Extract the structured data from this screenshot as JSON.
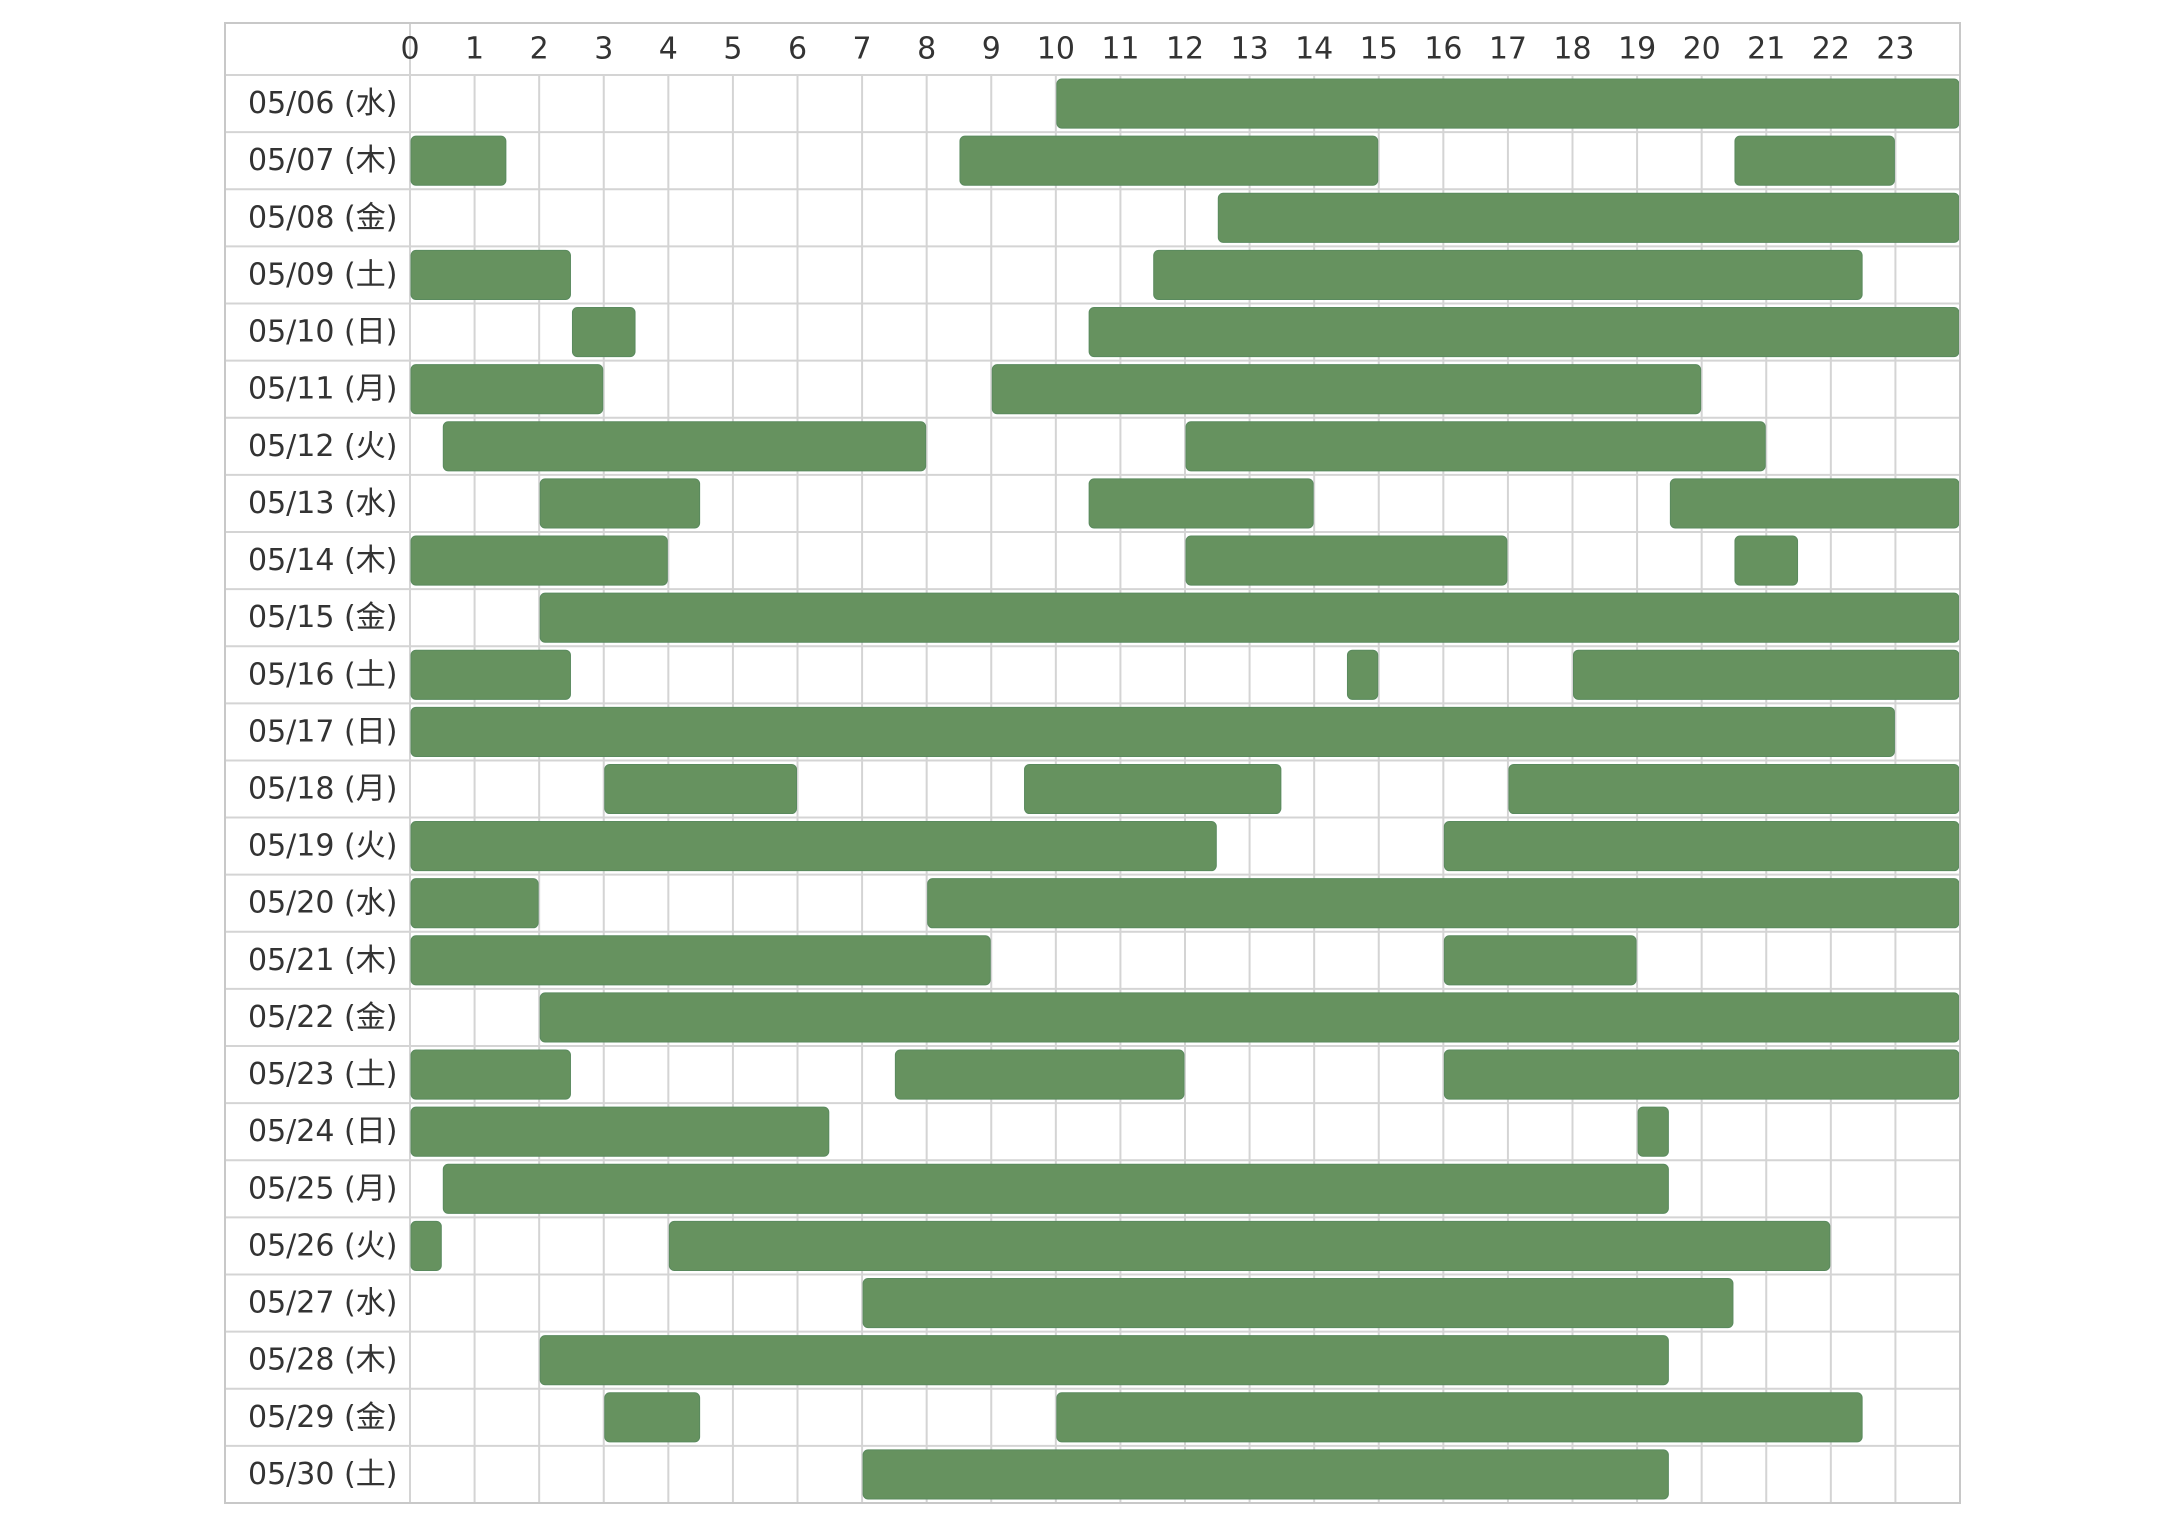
{
  "chart_data": {
    "type": "timeline",
    "title": "",
    "xlabel": "",
    "ylabel": "",
    "hours": [
      "0",
      "1",
      "2",
      "3",
      "4",
      "5",
      "6",
      "7",
      "8",
      "9",
      "10",
      "11",
      "12",
      "13",
      "14",
      "15",
      "16",
      "17",
      "18",
      "19",
      "20",
      "21",
      "22",
      "23"
    ],
    "x_range": [
      0,
      24
    ],
    "grid": true,
    "bar_color": "#66925f",
    "days": [
      {
        "label": "05/06 (水)",
        "spans": [
          [
            10.0,
            24.0
          ]
        ]
      },
      {
        "label": "05/07 (木)",
        "spans": [
          [
            0.0,
            1.5
          ],
          [
            8.5,
            15.0
          ],
          [
            20.5,
            23.0
          ]
        ]
      },
      {
        "label": "05/08 (金)",
        "spans": [
          [
            12.5,
            24.0
          ]
        ]
      },
      {
        "label": "05/09 (土)",
        "spans": [
          [
            0.0,
            2.5
          ],
          [
            11.5,
            22.5
          ]
        ]
      },
      {
        "label": "05/10 (日)",
        "spans": [
          [
            2.5,
            3.5
          ],
          [
            10.5,
            24.0
          ]
        ]
      },
      {
        "label": "05/11 (月)",
        "spans": [
          [
            0.0,
            3.0
          ],
          [
            9.0,
            20.0
          ]
        ]
      },
      {
        "label": "05/12 (火)",
        "spans": [
          [
            0.5,
            8.0
          ],
          [
            12.0,
            21.0
          ]
        ]
      },
      {
        "label": "05/13 (水)",
        "spans": [
          [
            2.0,
            4.5
          ],
          [
            10.5,
            14.0
          ],
          [
            19.5,
            24.0
          ]
        ]
      },
      {
        "label": "05/14 (木)",
        "spans": [
          [
            0.0,
            4.0
          ],
          [
            12.0,
            17.0
          ],
          [
            20.5,
            21.5
          ]
        ]
      },
      {
        "label": "05/15 (金)",
        "spans": [
          [
            2.0,
            24.0
          ]
        ]
      },
      {
        "label": "05/16 (土)",
        "spans": [
          [
            0.0,
            2.5
          ],
          [
            14.5,
            15.0
          ],
          [
            18.0,
            24.0
          ]
        ]
      },
      {
        "label": "05/17 (日)",
        "spans": [
          [
            0.0,
            23.0
          ]
        ]
      },
      {
        "label": "05/18 (月)",
        "spans": [
          [
            3.0,
            6.0
          ],
          [
            9.5,
            13.5
          ],
          [
            17.0,
            24.0
          ]
        ]
      },
      {
        "label": "05/19 (火)",
        "spans": [
          [
            0.0,
            12.5
          ],
          [
            16.0,
            24.0
          ]
        ]
      },
      {
        "label": "05/20 (水)",
        "spans": [
          [
            0.0,
            2.0
          ],
          [
            8.0,
            24.0
          ]
        ]
      },
      {
        "label": "05/21 (木)",
        "spans": [
          [
            0.0,
            9.0
          ],
          [
            16.0,
            19.0
          ]
        ]
      },
      {
        "label": "05/22 (金)",
        "spans": [
          [
            2.0,
            24.0
          ]
        ]
      },
      {
        "label": "05/23 (土)",
        "spans": [
          [
            0.0,
            2.5
          ],
          [
            7.5,
            12.0
          ],
          [
            16.0,
            24.0
          ]
        ]
      },
      {
        "label": "05/24 (日)",
        "spans": [
          [
            0.0,
            6.5
          ],
          [
            19.0,
            19.5
          ]
        ]
      },
      {
        "label": "05/25 (月)",
        "spans": [
          [
            0.5,
            19.5
          ]
        ]
      },
      {
        "label": "05/26 (火)",
        "spans": [
          [
            0.0,
            0.5
          ],
          [
            4.0,
            22.0
          ]
        ]
      },
      {
        "label": "05/27 (水)",
        "spans": [
          [
            7.0,
            20.5
          ]
        ]
      },
      {
        "label": "05/28 (木)",
        "spans": [
          [
            2.0,
            19.5
          ]
        ]
      },
      {
        "label": "05/29 (金)",
        "spans": [
          [
            3.0,
            4.5
          ],
          [
            10.0,
            22.5
          ]
        ]
      },
      {
        "label": "05/30 (土)",
        "spans": [
          [
            7.0,
            19.5
          ]
        ]
      }
    ]
  }
}
